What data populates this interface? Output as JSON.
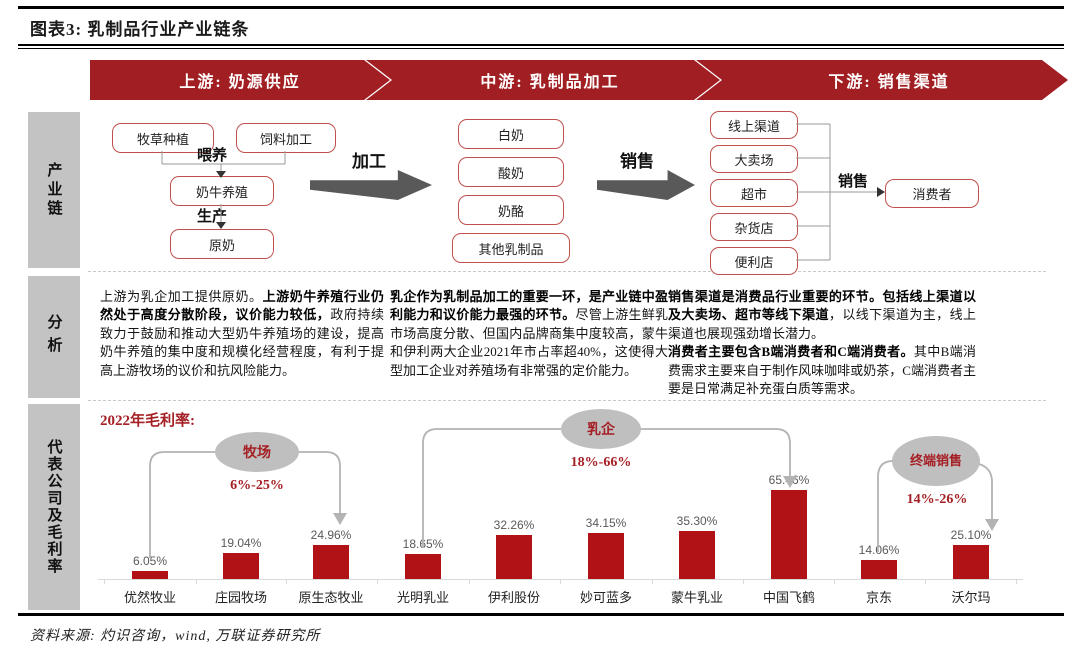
{
  "header": {
    "title": "图表3: 乳制品行业产业链条"
  },
  "banners": [
    {
      "label": "上游: 奶源供应"
    },
    {
      "label": "中游: 乳制品加工"
    },
    {
      "label": "下游: 销售渠道"
    }
  ],
  "sidebar": {
    "rows": [
      "产业链",
      "分析",
      "代表公司及毛利率"
    ]
  },
  "chain": {
    "upstream": {
      "pasture": "牧草种植",
      "feed": "饲料加工",
      "feeding_label": "喂养",
      "farming": "奶牛养殖",
      "produce_label": "生产",
      "raw_milk": "原奶",
      "process_arrow_label": "加工"
    },
    "midstream": {
      "products": [
        "白奶",
        "酸奶",
        "奶酪",
        "其他乳制品"
      ],
      "sell_arrow_label": "销售"
    },
    "downstream": {
      "channels": [
        "线上渠道",
        "大卖场",
        "超市",
        "杂货店",
        "便利店"
      ],
      "sell_label": "销售",
      "consumer": "消费者"
    }
  },
  "analysis": {
    "col1": {
      "segs": [
        {
          "b": false,
          "t": "上游为乳企加工提供原奶。"
        },
        {
          "b": true,
          "t": "上游奶牛养殖行业仍然处于高度分散阶段，议价能力较低，"
        },
        {
          "b": false,
          "t": "政府持续致力于鼓励和推动大型奶牛养殖场的建设，提高奶牛养殖的集中度和规模化经营程度，有利于提高上游牧场的议价和抗风险能力。"
        }
      ]
    },
    "col2": {
      "segs": [
        {
          "b": true,
          "t": "乳企作为乳制品加工的重要一环，是产业链中盈利能力和议价能力最强的环节。"
        },
        {
          "b": false,
          "t": "尽管上游生鲜乳市场高度分散、但国内品牌商集中度较高，蒙牛和伊利两大企业2021年市占率超40%，这使得大型加工企业对养殖场有非常强的定价能力。"
        }
      ]
    },
    "col3_p1": {
      "segs": [
        {
          "b": true,
          "t": "销售渠道是消费品行业重要的环节。包括线上渠道以及大卖场、超市等线下渠道"
        },
        {
          "b": false,
          "t": "，以线下渠道为主，线上渠道也展现强劲增长潜力。"
        }
      ]
    },
    "col3_p2": {
      "segs": [
        {
          "b": true,
          "t": "消费者主要包含B端消费者和C端消费者。"
        },
        {
          "b": false,
          "t": "其中B端消费需求主要来自于制作风味咖啡或奶茶，C端消费者主要是日常满足补充蛋白质等需求。"
        }
      ]
    }
  },
  "chart_data": {
    "type": "bar",
    "title": "2022年毛利率:",
    "categories": [
      "优然牧业",
      "庄园牧场",
      "原生态牧业",
      "光明乳业",
      "伊利股份",
      "妙可蓝多",
      "蒙牛乳业",
      "中国飞鹤",
      "京东",
      "沃尔玛"
    ],
    "values": [
      6.05,
      19.04,
      24.96,
      18.65,
      32.26,
      34.15,
      35.3,
      65.46,
      14.06,
      25.1
    ],
    "value_labels": [
      "6.05%",
      "19.04%",
      "24.96%",
      "18.65%",
      "32.26%",
      "34.15%",
      "35.30%",
      "65.46%",
      "14.06%",
      "25.10%"
    ],
    "ylim": [
      0,
      70
    ],
    "grid": false,
    "bar_color": "#b01215",
    "groups": [
      {
        "label": "牧场",
        "range": "6%-25%"
      },
      {
        "label": "乳企",
        "range": "18%-66%"
      },
      {
        "label": "终端销售",
        "range": "14%-26%"
      }
    ]
  },
  "colors": {
    "banner_red": "#a11e22",
    "bar_red": "#b01215",
    "accent_red": "#a52025",
    "gray_arrow": "#595959"
  },
  "footer": {
    "source": "资料来源: 灼识咨询，wind, 万联证券研究所"
  }
}
